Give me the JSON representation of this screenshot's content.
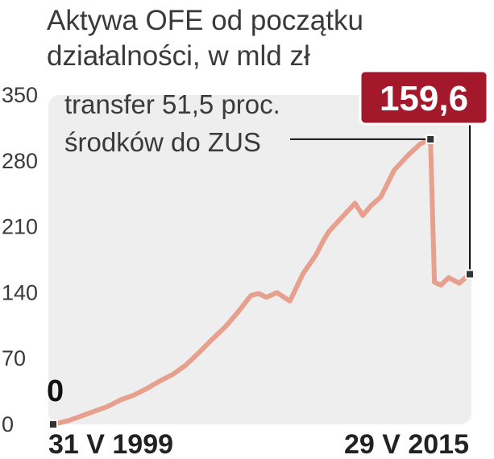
{
  "chart_data": {
    "type": "line",
    "title_lines": [
      "Aktywa OFE od początku",
      "działalności, w mld zł"
    ],
    "xlabel": "",
    "ylabel": "",
    "ylim": [
      0,
      350
    ],
    "yticks": [
      "0",
      "70",
      "140",
      "210",
      "280",
      "350"
    ],
    "x_start_label": "31 V 1999",
    "x_end_label": "29 V 2015",
    "grid": false,
    "annotation_lines": [
      "transfer 51,5 proc.",
      "środków do ZUS"
    ],
    "start_value_label": "0",
    "end_value_label": "159,6",
    "series": [
      {
        "x": [
          1999.41,
          2000.0,
          2000.5,
          2001.0,
          2001.5,
          2002.0,
          2002.5,
          2003.0,
          2003.5,
          2004.0,
          2004.5,
          2005.0,
          2005.5,
          2006.0,
          2006.5,
          2007.0,
          2007.3,
          2007.6,
          2008.0,
          2008.5,
          2009.0,
          2009.3,
          2009.5,
          2009.8,
          2010.0,
          2010.5,
          2011.0,
          2011.3,
          2011.6,
          2012.0,
          2012.5,
          2013.0,
          2013.5,
          2013.9,
          2014.05,
          2014.3,
          2014.6,
          2015.0,
          2015.41
        ],
        "values": [
          0,
          4,
          9,
          14,
          19,
          26,
          31,
          38,
          46,
          53,
          63,
          76,
          90,
          103,
          119,
          137,
          139,
          135,
          140,
          131,
          160,
          172,
          180,
          196,
          205,
          220,
          235,
          222,
          232,
          242,
          270,
          285,
          298,
          303,
          151,
          148,
          156,
          150,
          159.6
        ]
      }
    ],
    "colors": {
      "line": "#e8a08e",
      "plot_background": "#eeeeee",
      "value_box": "#a4182c"
    }
  }
}
